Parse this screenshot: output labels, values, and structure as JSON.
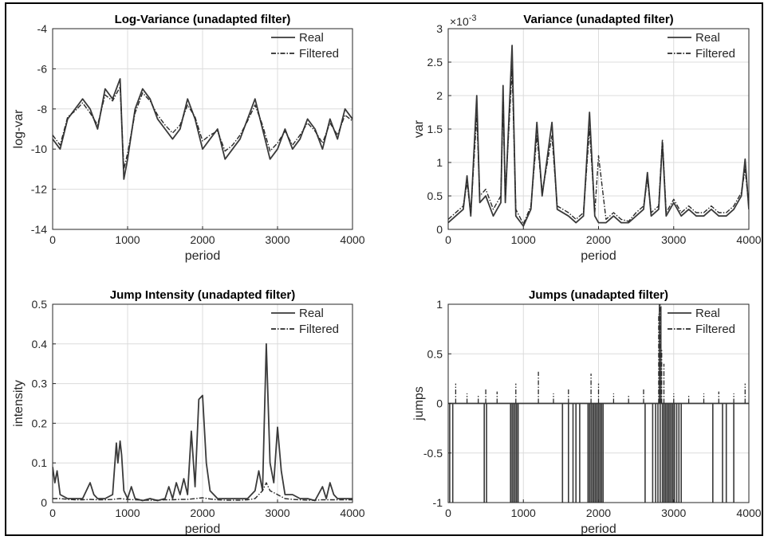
{
  "colors": {
    "real": "#3a3a3a",
    "filtered": "#2a2a2a",
    "grid": "#dcdcdc",
    "axis": "#262626"
  },
  "chart_data": [
    {
      "id": "logvar",
      "type": "line",
      "title": "Log-Variance (unadapted filter)",
      "xlabel": "period",
      "ylabel": "log-var",
      "xlim": [
        0,
        4000
      ],
      "ylim": [
        -14,
        -4
      ],
      "xticks": [
        0,
        1000,
        2000,
        3000,
        4000
      ],
      "yticks": [
        -14,
        -12,
        -10,
        -8,
        -6,
        -4
      ],
      "ytick_labels": [
        "-14",
        "-12",
        "-10",
        "-8",
        "-6",
        "-4"
      ],
      "exponent_label": "",
      "grid": true,
      "legend": "top-right",
      "series": [
        {
          "name": "Real",
          "style": "solid",
          "x": [
            0,
            100,
            200,
            300,
            400,
            500,
            600,
            700,
            800,
            900,
            950,
            1000,
            1100,
            1200,
            1300,
            1400,
            1500,
            1600,
            1700,
            1800,
            1900,
            2000,
            2100,
            2200,
            2300,
            2400,
            2500,
            2600,
            2700,
            2800,
            2900,
            3000,
            3100,
            3200,
            3300,
            3400,
            3500,
            3600,
            3700,
            3800,
            3900,
            4000
          ],
          "y": [
            -9.5,
            -10.0,
            -8.5,
            -8.0,
            -7.5,
            -8.0,
            -9.0,
            -7.0,
            -7.5,
            -6.5,
            -11.5,
            -10.5,
            -8.0,
            -7.0,
            -7.5,
            -8.5,
            -9.0,
            -9.5,
            -9.0,
            -7.5,
            -8.5,
            -10.0,
            -9.5,
            -9.0,
            -10.5,
            -10.0,
            -9.5,
            -8.5,
            -7.5,
            -9.0,
            -10.5,
            -10.0,
            -9.0,
            -10.0,
            -9.5,
            -8.5,
            -9.0,
            -10.0,
            -8.5,
            -9.5,
            -8.0,
            -8.5
          ]
        },
        {
          "name": "Filtered",
          "style": "dashdot",
          "x": [
            0,
            100,
            200,
            300,
            400,
            500,
            600,
            700,
            800,
            900,
            950,
            1000,
            1100,
            1200,
            1300,
            1400,
            1500,
            1600,
            1700,
            1800,
            1900,
            2000,
            2100,
            2200,
            2300,
            2400,
            2500,
            2600,
            2700,
            2800,
            2900,
            3000,
            3100,
            3200,
            3300,
            3400,
            3500,
            3600,
            3700,
            3800,
            3900,
            4000
          ],
          "y": [
            -9.3,
            -9.8,
            -8.4,
            -8.1,
            -7.7,
            -8.2,
            -8.8,
            -7.3,
            -7.6,
            -6.9,
            -11.0,
            -10.2,
            -8.2,
            -7.2,
            -7.6,
            -8.3,
            -8.8,
            -9.2,
            -8.8,
            -7.8,
            -8.4,
            -9.6,
            -9.3,
            -9.1,
            -10.1,
            -9.8,
            -9.3,
            -8.6,
            -7.8,
            -8.8,
            -10.1,
            -9.7,
            -9.1,
            -9.8,
            -9.3,
            -8.7,
            -9.1,
            -9.7,
            -8.7,
            -9.3,
            -8.3,
            -8.6
          ]
        }
      ]
    },
    {
      "id": "var",
      "type": "line",
      "title": "Variance (unadapted filter)",
      "xlabel": "period",
      "ylabel": "var",
      "xlim": [
        0,
        4000
      ],
      "ylim": [
        0,
        3
      ],
      "xticks": [
        0,
        1000,
        2000,
        3000,
        4000
      ],
      "yticks": [
        0,
        0.5,
        1,
        1.5,
        2,
        2.5,
        3
      ],
      "ytick_labels": [
        "0",
        "0.5",
        "1",
        "1.5",
        "2",
        "2.5",
        "3"
      ],
      "exponent_label": "×10",
      "exponent_power": "-3",
      "grid": true,
      "legend": "top-right",
      "series": [
        {
          "name": "Real",
          "style": "solid",
          "x": [
            0,
            100,
            200,
            250,
            300,
            380,
            420,
            500,
            600,
            700,
            730,
            760,
            850,
            900,
            1000,
            1100,
            1180,
            1250,
            1380,
            1450,
            1600,
            1700,
            1800,
            1880,
            1950,
            2000,
            2100,
            2200,
            2300,
            2400,
            2500,
            2600,
            2650,
            2700,
            2800,
            2850,
            2900,
            3000,
            3100,
            3200,
            3300,
            3400,
            3500,
            3600,
            3700,
            3800,
            3900,
            3950,
            4000
          ],
          "y": [
            0.1,
            0.2,
            0.3,
            0.8,
            0.2,
            2.0,
            0.4,
            0.5,
            0.2,
            0.4,
            2.15,
            0.4,
            2.75,
            0.2,
            0.05,
            0.3,
            1.6,
            0.5,
            1.6,
            0.3,
            0.2,
            0.1,
            0.2,
            1.75,
            0.2,
            0.1,
            0.1,
            0.2,
            0.1,
            0.1,
            0.2,
            0.3,
            0.85,
            0.2,
            0.3,
            1.3,
            0.2,
            0.4,
            0.2,
            0.3,
            0.2,
            0.2,
            0.3,
            0.2,
            0.2,
            0.3,
            0.5,
            1.05,
            0.3
          ]
        },
        {
          "name": "Filtered",
          "style": "dashdot",
          "x": [
            0,
            100,
            200,
            250,
            300,
            380,
            420,
            500,
            600,
            700,
            730,
            760,
            850,
            900,
            1000,
            1100,
            1180,
            1250,
            1380,
            1450,
            1600,
            1700,
            1800,
            1880,
            1950,
            2000,
            2100,
            2200,
            2300,
            2400,
            2500,
            2600,
            2650,
            2700,
            2800,
            2850,
            2900,
            3000,
            3100,
            3200,
            3300,
            3400,
            3500,
            3600,
            3700,
            3800,
            3900,
            3950,
            4000
          ],
          "y": [
            0.15,
            0.25,
            0.35,
            0.7,
            0.25,
            1.7,
            0.5,
            0.6,
            0.3,
            0.5,
            1.9,
            0.5,
            2.4,
            0.3,
            0.08,
            0.35,
            1.4,
            0.55,
            1.4,
            0.35,
            0.25,
            0.15,
            0.25,
            1.5,
            0.25,
            1.1,
            0.15,
            0.25,
            0.15,
            0.12,
            0.25,
            0.35,
            0.75,
            0.25,
            0.35,
            1.35,
            0.25,
            0.45,
            0.25,
            0.35,
            0.25,
            0.25,
            0.35,
            0.25,
            0.25,
            0.35,
            0.55,
            0.9,
            0.35
          ]
        }
      ]
    },
    {
      "id": "intensity",
      "type": "line",
      "title": "Jump Intensity (unadapted filter)",
      "xlabel": "period",
      "ylabel": "intensity",
      "xlim": [
        0,
        4000
      ],
      "ylim": [
        0,
        0.5
      ],
      "xticks": [
        0,
        1000,
        2000,
        3000,
        4000
      ],
      "yticks": [
        0,
        0.1,
        0.2,
        0.3,
        0.4,
        0.5
      ],
      "ytick_labels": [
        "0",
        "0.1",
        "0.2",
        "0.3",
        "0.4",
        "0.5"
      ],
      "exponent_label": "",
      "grid": true,
      "legend": "top-right",
      "series": [
        {
          "name": "Real",
          "style": "solid",
          "x": [
            0,
            30,
            60,
            100,
            200,
            300,
            400,
            500,
            550,
            600,
            700,
            800,
            850,
            870,
            900,
            920,
            950,
            1000,
            1050,
            1100,
            1200,
            1300,
            1400,
            1500,
            1550,
            1600,
            1650,
            1700,
            1750,
            1800,
            1850,
            1900,
            1950,
            2000,
            2050,
            2100,
            2200,
            2300,
            2400,
            2500,
            2600,
            2700,
            2750,
            2800,
            2850,
            2900,
            2950,
            3000,
            3050,
            3100,
            3200,
            3300,
            3400,
            3500,
            3600,
            3650,
            3700,
            3750,
            3800,
            3900,
            4000
          ],
          "y": [
            0.09,
            0.05,
            0.08,
            0.02,
            0.01,
            0.01,
            0.01,
            0.05,
            0.02,
            0.01,
            0.01,
            0.02,
            0.15,
            0.1,
            0.155,
            0.12,
            0.03,
            0.01,
            0.04,
            0.01,
            0.005,
            0.01,
            0.005,
            0.01,
            0.04,
            0.01,
            0.05,
            0.02,
            0.06,
            0.02,
            0.18,
            0.04,
            0.26,
            0.27,
            0.1,
            0.03,
            0.01,
            0.01,
            0.01,
            0.01,
            0.01,
            0.03,
            0.08,
            0.03,
            0.4,
            0.1,
            0.05,
            0.19,
            0.08,
            0.02,
            0.02,
            0.01,
            0.01,
            0.005,
            0.04,
            0.01,
            0.05,
            0.02,
            0.01,
            0.01,
            0.01
          ]
        },
        {
          "name": "Filtered",
          "style": "dashdot",
          "x": [
            0,
            100,
            200,
            300,
            400,
            500,
            600,
            700,
            800,
            900,
            1000,
            1100,
            1200,
            1300,
            1400,
            1500,
            1600,
            1700,
            1800,
            1900,
            2000,
            2100,
            2200,
            2300,
            2400,
            2500,
            2600,
            2700,
            2800,
            2850,
            2900,
            3000,
            3100,
            3200,
            3300,
            3400,
            3500,
            3600,
            3700,
            3800,
            3900,
            4000
          ],
          "y": [
            0.01,
            0.01,
            0.008,
            0.007,
            0.007,
            0.008,
            0.007,
            0.007,
            0.008,
            0.01,
            0.008,
            0.007,
            0.006,
            0.006,
            0.006,
            0.007,
            0.007,
            0.008,
            0.008,
            0.01,
            0.012,
            0.009,
            0.007,
            0.006,
            0.006,
            0.006,
            0.007,
            0.01,
            0.03,
            0.05,
            0.03,
            0.02,
            0.01,
            0.008,
            0.007,
            0.006,
            0.006,
            0.007,
            0.007,
            0.007,
            0.007,
            0.007
          ]
        }
      ]
    },
    {
      "id": "jumps",
      "type": "line",
      "title": "Jumps (unadapted filter)",
      "xlabel": "period",
      "ylabel": "jumps",
      "xlim": [
        0,
        4000
      ],
      "ylim": [
        -1,
        1
      ],
      "xticks": [
        0,
        1000,
        2000,
        3000,
        4000
      ],
      "yticks": [
        -1,
        -0.5,
        0,
        0.5,
        1
      ],
      "ytick_labels": [
        "-1",
        "-0.5",
        "0",
        "0.5",
        "1"
      ],
      "exponent_label": "",
      "grid": true,
      "legend": "top-right",
      "series": [
        {
          "name": "Real",
          "style": "solid",
          "spikes_x": [
            20,
            60,
            480,
            510,
            830,
            850,
            870,
            890,
            910,
            930,
            1520,
            1600,
            1660,
            1700,
            1750,
            1860,
            1880,
            1900,
            1920,
            1940,
            1960,
            1980,
            2000,
            2020,
            2040,
            2060,
            2620,
            2720,
            2760,
            2790,
            2810,
            2820,
            2830,
            2850,
            2870,
            2890,
            2910,
            2930,
            2950,
            2970,
            2990,
            3010,
            3040,
            3070,
            3100,
            3520,
            3650,
            3700,
            3800
          ],
          "spikes_y": [
            -1,
            -1,
            -1,
            -1,
            -1,
            -1,
            -1,
            -1,
            -1,
            -1,
            -1,
            -1,
            -1,
            -1,
            -1,
            -1,
            -1,
            -1,
            -1,
            -1,
            -1,
            -1,
            -1,
            -1,
            -1,
            -1,
            -1,
            -1,
            -1,
            -1,
            1,
            -1,
            0.98,
            -1,
            -1,
            -1,
            -1,
            -1,
            -1,
            -1,
            -1,
            -1,
            -1,
            -1,
            -1,
            -1,
            -1,
            -1,
            -1
          ]
        },
        {
          "name": "Filtered",
          "style": "dashdot",
          "spikes_x": [
            100,
            250,
            400,
            500,
            650,
            900,
            1200,
            1400,
            1600,
            1900,
            2000,
            2200,
            2400,
            2600,
            2800,
            2820,
            2840,
            2870,
            3000,
            3200,
            3400,
            3600,
            3800,
            3950
          ],
          "spikes_y": [
            0.2,
            0.1,
            0.08,
            0.15,
            0.12,
            0.2,
            0.32,
            0.1,
            0.15,
            0.3,
            0.2,
            0.1,
            0.08,
            0.15,
            0.9,
            1.0,
            0.55,
            0.4,
            0.1,
            0.08,
            0.1,
            0.12,
            0.1,
            0.2
          ]
        }
      ]
    }
  ]
}
